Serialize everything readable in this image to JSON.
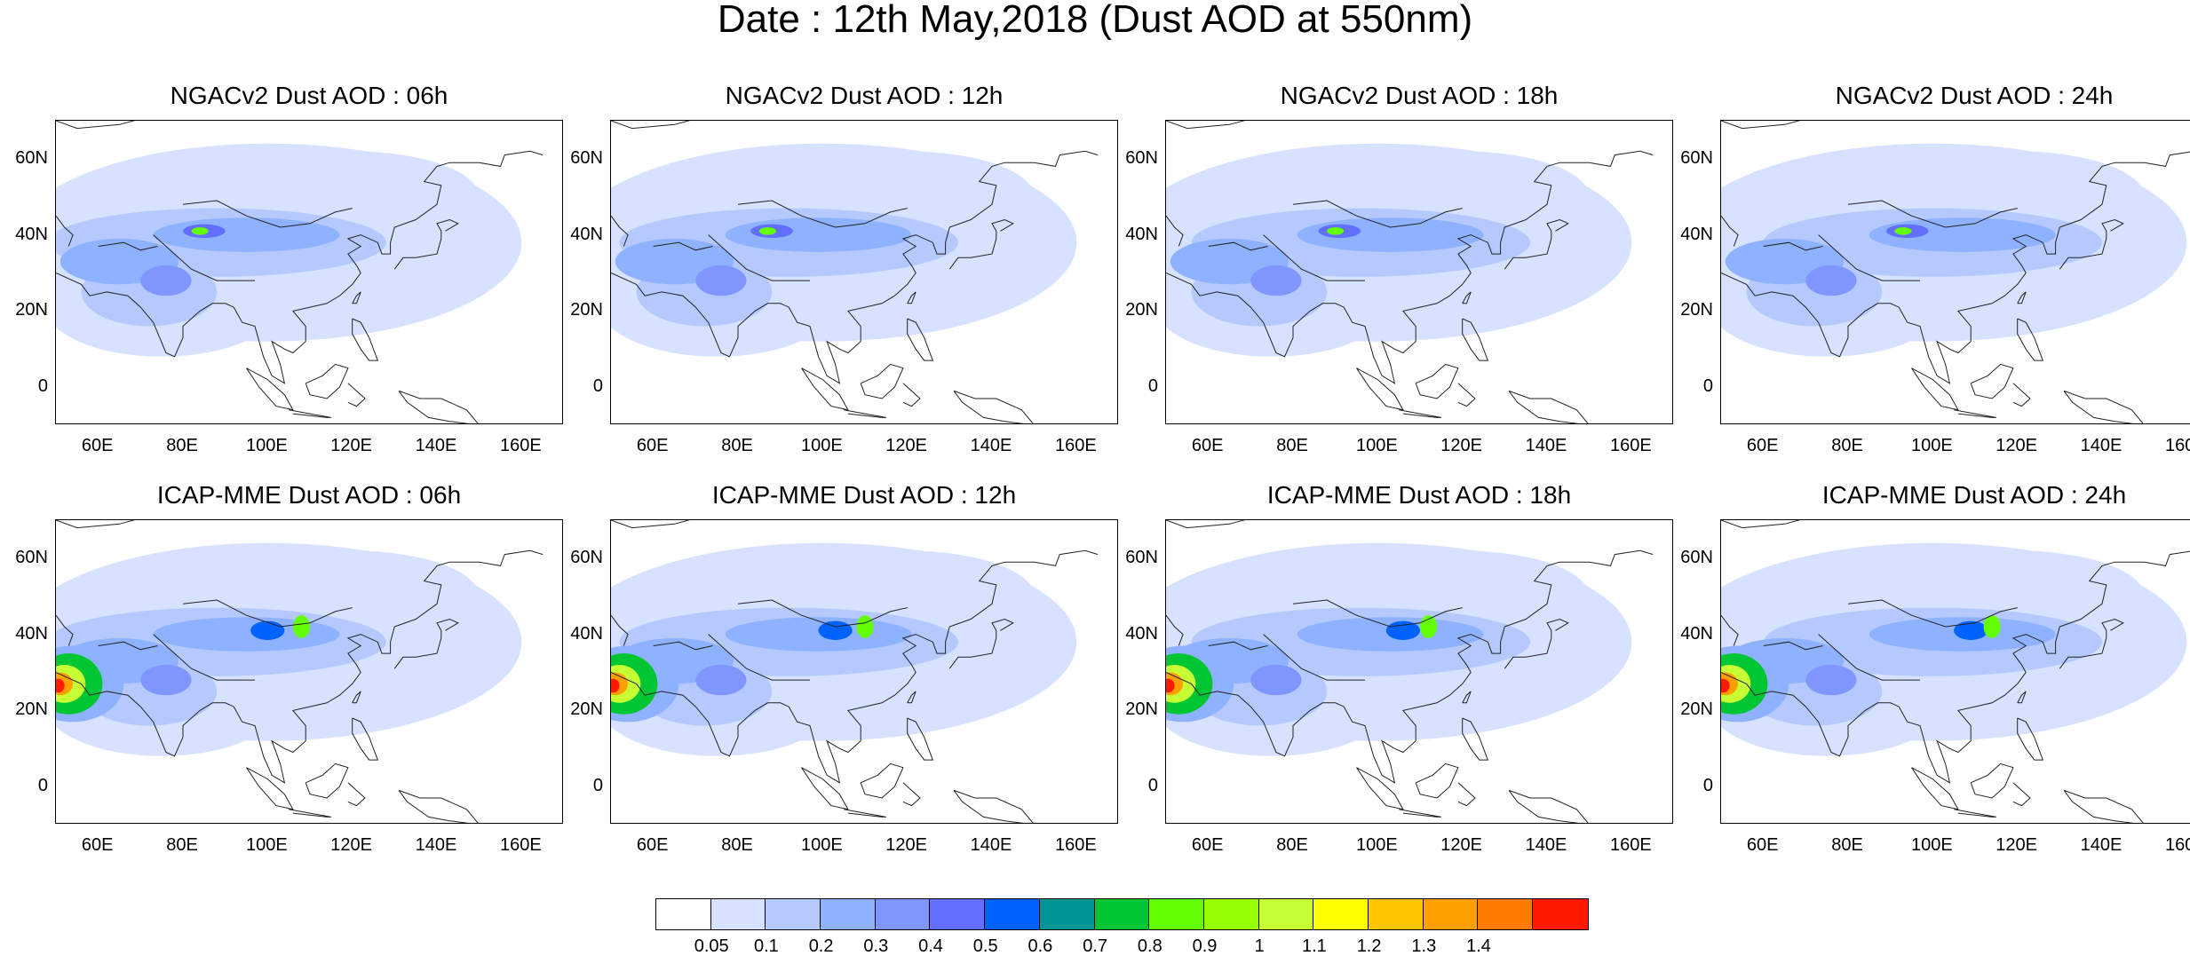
{
  "title": "Date : 12th May,2018 (Dust AOD at 550nm)",
  "panels": [
    {
      "title": "NGACv2 Dust AOD : 06h",
      "model": "ngac",
      "shift": 0
    },
    {
      "title": "NGACv2 Dust AOD : 12h",
      "model": "ngac",
      "shift": 1
    },
    {
      "title": "NGACv2 Dust AOD : 18h",
      "model": "ngac",
      "shift": 2
    },
    {
      "title": "NGACv2 Dust AOD : 24h",
      "model": "ngac",
      "shift": 3
    },
    {
      "title": "ICAP-MME Dust AOD : 06h",
      "model": "icap",
      "shift": 0
    },
    {
      "title": "ICAP-MME Dust AOD : 12h",
      "model": "icap",
      "shift": 1
    },
    {
      "title": "ICAP-MME Dust AOD : 18h",
      "model": "icap",
      "shift": 2
    },
    {
      "title": "ICAP-MME Dust AOD : 24h",
      "model": "icap",
      "shift": 3
    }
  ],
  "map": {
    "lon_range": [
      50,
      170
    ],
    "lat_range": [
      -10,
      70
    ],
    "lat_ticks": [
      "60N",
      "40N",
      "20N",
      "0"
    ],
    "lon_ticks": [
      "60E",
      "80E",
      "100E",
      "120E",
      "140E",
      "160E"
    ]
  },
  "colorbar": {
    "colors": [
      "#ffffff",
      "#d6e2ff",
      "#b5c9ff",
      "#8eb2ff",
      "#7f96ff",
      "#6370ff",
      "#0063ff",
      "#009696",
      "#00c633",
      "#63ff00",
      "#96ff00",
      "#c6ff33",
      "#ffff00",
      "#ffc600",
      "#ffa000",
      "#ff7c00",
      "#ff1900"
    ],
    "labels": [
      "0.05",
      "0.1",
      "0.2",
      "0.3",
      "0.4",
      "0.5",
      "0.6",
      "0.7",
      "0.8",
      "0.9",
      "1",
      "1.1",
      "1.2",
      "1.3",
      "1.4"
    ]
  }
}
